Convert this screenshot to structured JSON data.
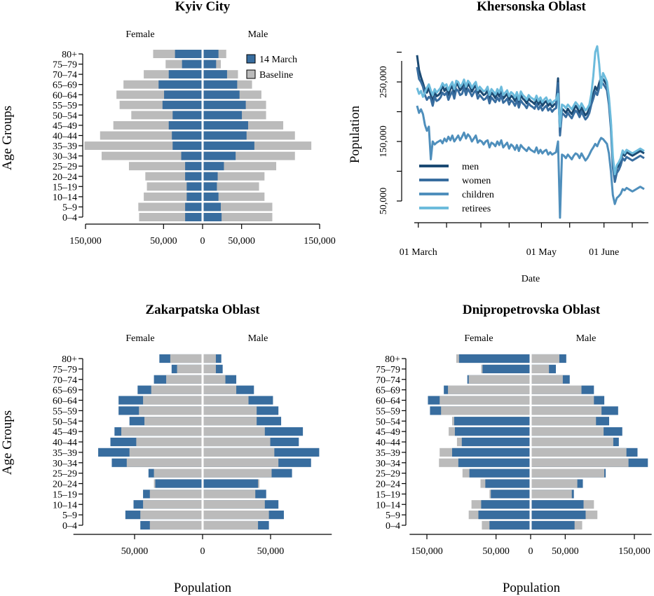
{
  "colors": {
    "march": "#386d9f",
    "baseline": "#bbbbbb",
    "lines": [
      "#1b4a73",
      "#386d9f",
      "#4f8fbc",
      "#6cbbdc"
    ]
  },
  "age_groups": [
    "80+",
    "75–79",
    "70–74",
    "65–69",
    "60–64",
    "55–59",
    "50–54",
    "45–49",
    "40–44",
    "35–39",
    "30–34",
    "25–29",
    "20–24",
    "15–19",
    "10–14",
    "5–9",
    "0–4"
  ],
  "labels": {
    "female": "Female",
    "male": "Male",
    "age_groups_axis": "Age Groups",
    "population_axis": "Population",
    "date_axis": "Date",
    "legend_march": "14 March",
    "legend_baseline": "Baseline"
  },
  "chart_data": [
    {
      "type": "bar",
      "subtype": "population-pyramid",
      "title": "Kyiv City",
      "categories": [
        "80+",
        "75–79",
        "70–74",
        "65–69",
        "60–64",
        "55–59",
        "50–54",
        "45–49",
        "40–44",
        "35–39",
        "30–34",
        "25–29",
        "20–24",
        "15–19",
        "10–14",
        "5–9",
        "0–4"
      ],
      "xlim": [
        -150000,
        150000
      ],
      "xticks": [
        -150000,
        -50000,
        0,
        50000,
        150000
      ],
      "xtick_labels": [
        "150,000",
        "50,000",
        "0",
        "50,000",
        "150,000"
      ],
      "legend": "top-right",
      "female_baseline": [
        62000,
        46000,
        74000,
        100000,
        109000,
        105000,
        90000,
        113000,
        130000,
        150000,
        128000,
        93000,
        72000,
        70000,
        74000,
        81000,
        80000
      ],
      "female_march": [
        34000,
        25000,
        42000,
        55000,
        48000,
        50000,
        37000,
        42000,
        38000,
        37000,
        26000,
        21000,
        21000,
        19000,
        19000,
        21000,
        21000
      ],
      "male_baseline": [
        29000,
        22000,
        44000,
        62000,
        74000,
        80000,
        80000,
        102000,
        117000,
        138000,
        117000,
        93000,
        78000,
        71000,
        78000,
        88000,
        88000
      ],
      "male_march": [
        19000,
        16000,
        30000,
        43000,
        46000,
        54000,
        49000,
        57000,
        55000,
        65000,
        41000,
        26000,
        18000,
        17000,
        19000,
        22000,
        23000
      ]
    },
    {
      "type": "line",
      "title": "Khersonska Oblast",
      "xlabel": "Date",
      "ylabel": "Population",
      "x_ticks": [
        "01 March",
        "01 May",
        "01 June"
      ],
      "yticks": [
        50000,
        150000,
        250000
      ],
      "ytick_labels": [
        "50,000",
        "150,000",
        "250,000"
      ],
      "ylim": [
        15000,
        320000
      ],
      "legend": "bottom-left",
      "x_start_day": 58,
      "x_end_day": 174,
      "series": [
        {
          "name": "men",
          "values": [
            295000,
            270000,
            258000,
            248000,
            237000,
            232000,
            240000,
            228000,
            215000,
            234000,
            226000,
            228000,
            232000,
            245000,
            235000,
            240000,
            228000,
            238000,
            243000,
            231000,
            248000,
            244000,
            236000,
            240000,
            250000,
            237000,
            247000,
            242000,
            234000,
            240000,
            244000,
            230000,
            236000,
            232000,
            228000,
            230000,
            236000,
            222000,
            232000,
            228000,
            223000,
            232000,
            226000,
            236000,
            222000,
            226000,
            230000,
            220000,
            227000,
            224000,
            218000,
            227000,
            214000,
            228000,
            222000,
            219000,
            214000,
            222000,
            218000,
            216000,
            213000,
            221000,
            212000,
            218000,
            210000,
            215000,
            218000,
            210000,
            214000,
            208000,
            212000,
            214000,
            256000,
            165000,
            205000,
            202000,
            198000,
            205000,
            200000,
            196000,
            203000,
            210000,
            205000,
            198000,
            207000,
            200000,
            194000,
            198000,
            205000,
            220000,
            230000,
            242000,
            236000,
            248000,
            258000,
            255000,
            250000,
            244000,
            220000,
            180000,
            115000,
            90000,
            105000,
            110000,
            118000,
            130000,
            126000,
            132000,
            130000,
            128000,
            126000,
            128000,
            130000,
            132000,
            134000,
            132000,
            130000
          ]
        },
        {
          "name": "women",
          "values": [
            275000,
            255000,
            250000,
            242000,
            228000,
            220000,
            225000,
            222000,
            210000,
            225000,
            218000,
            220000,
            224000,
            232000,
            228000,
            232000,
            220000,
            228000,
            234000,
            222000,
            238000,
            235000,
            228000,
            230000,
            241000,
            228000,
            238000,
            233000,
            226000,
            232000,
            236000,
            222000,
            228000,
            224000,
            220000,
            222000,
            227000,
            214000,
            224000,
            220000,
            216000,
            224000,
            218000,
            228000,
            215000,
            218000,
            222000,
            212000,
            219000,
            216000,
            210000,
            219000,
            207000,
            219000,
            214000,
            211000,
            206000,
            214000,
            210000,
            208000,
            205000,
            213000,
            204000,
            210000,
            202000,
            207000,
            210000,
            202000,
            206000,
            200000,
            204000,
            206000,
            248000,
            160000,
            198000,
            195000,
            191000,
            198000,
            193000,
            189000,
            196000,
            202000,
            198000,
            191000,
            200000,
            193000,
            187000,
            191000,
            198000,
            212000,
            222000,
            234000,
            228000,
            240000,
            250000,
            247000,
            242000,
            236000,
            212000,
            172000,
            107000,
            82000,
            97000,
            102000,
            110000,
            122000,
            118000,
            124000,
            122000,
            120000,
            118000,
            120000,
            122000,
            124000,
            126000,
            124000,
            122000
          ]
        },
        {
          "name": "children",
          "values": [
            210000,
            198000,
            204000,
            196000,
            178000,
            168000,
            175000,
            120000,
            150000,
            145000,
            148000,
            150000,
            152000,
            147000,
            155000,
            150000,
            158000,
            152000,
            160000,
            150000,
            155000,
            160000,
            152000,
            158000,
            165000,
            155000,
            162000,
            158000,
            150000,
            155000,
            160000,
            148000,
            152000,
            150000,
            145000,
            150000,
            152000,
            140000,
            148000,
            146000,
            142000,
            150000,
            144000,
            152000,
            140000,
            144000,
            148000,
            138000,
            145000,
            142000,
            136000,
            144000,
            134000,
            144000,
            140000,
            137000,
            134000,
            140000,
            136000,
            134000,
            132000,
            140000,
            130000,
            136000,
            130000,
            134000,
            136000,
            128000,
            132000,
            128000,
            130000,
            132000,
            150000,
            22000,
            128000,
            126000,
            122000,
            128000,
            124000,
            120000,
            126000,
            130000,
            128000,
            122000,
            130000,
            124000,
            118000,
            122000,
            128000,
            135000,
            140000,
            146000,
            142000,
            150000,
            156000,
            154000,
            150000,
            146000,
            130000,
            100000,
            60000,
            45000,
            55000,
            58000,
            62000,
            70000,
            68000,
            72000,
            70000,
            68000,
            66000,
            68000,
            70000,
            72000,
            74000,
            72000,
            70000
          ]
        },
        {
          "name": "retirees",
          "values": [
            240000,
            230000,
            235000,
            225000,
            232000,
            240000,
            246000,
            236000,
            228000,
            238000,
            232000,
            236000,
            240000,
            248000,
            243000,
            246000,
            236000,
            244000,
            250000,
            238000,
            252000,
            250000,
            242000,
            246000,
            254000,
            242000,
            252000,
            248000,
            240000,
            246000,
            250000,
            236000,
            242000,
            238000,
            234000,
            236000,
            242000,
            228000,
            238000,
            234000,
            229000,
            238000,
            232000,
            242000,
            228000,
            232000,
            236000,
            226000,
            233000,
            230000,
            224000,
            233000,
            220000,
            234000,
            228000,
            225000,
            220000,
            228000,
            224000,
            222000,
            219000,
            227000,
            218000,
            224000,
            216000,
            221000,
            224000,
            216000,
            220000,
            214000,
            218000,
            220000,
            230000,
            175000,
            212000,
            210000,
            206000,
            212000,
            208000,
            204000,
            210000,
            216000,
            212000,
            206000,
            214000,
            208000,
            202000,
            206000,
            212000,
            230000,
            260000,
            300000,
            310000,
            280000,
            240000,
            265000,
            258000,
            250000,
            225000,
            185000,
            125000,
            95000,
            110000,
            115000,
            122000,
            135000,
            130000,
            136000,
            134000,
            132000,
            130000,
            132000,
            134000,
            136000,
            138000,
            136000,
            134000
          ]
        }
      ]
    },
    {
      "type": "bar",
      "subtype": "population-pyramid",
      "title": "Zakarpatska Oblast",
      "xlabel": "Population",
      "categories": [
        "80+",
        "75–79",
        "70–74",
        "65–69",
        "60–64",
        "55–59",
        "50–54",
        "45–49",
        "40–44",
        "35–39",
        "30–34",
        "25–29",
        "20–24",
        "15–19",
        "10–14",
        "5–9",
        "0–4"
      ],
      "xlim": [
        -95000,
        95000
      ],
      "xticks": [
        -50000,
        0,
        50000
      ],
      "xtick_labels": [
        "50,000",
        "0",
        "50,000"
      ],
      "female_baseline": [
        23000,
        18000,
        26000,
        37000,
        43000,
        46000,
        42000,
        59000,
        48000,
        53000,
        55000,
        35000,
        35000,
        38000,
        43000,
        45000,
        38000
      ],
      "female_march": [
        31000,
        22000,
        35000,
        47000,
        61000,
        61000,
        53000,
        64000,
        67000,
        76000,
        66000,
        39000,
        34000,
        43000,
        50000,
        56000,
        45000
      ],
      "male_baseline": [
        9000,
        9000,
        16000,
        24000,
        33000,
        39000,
        39000,
        45000,
        49000,
        52000,
        55000,
        50000,
        41000,
        38000,
        45000,
        48000,
        40000
      ],
      "male_march": [
        13000,
        14000,
        24000,
        37000,
        51000,
        55000,
        57000,
        73000,
        70000,
        85000,
        79000,
        65000,
        40000,
        46000,
        55000,
        59000,
        48000
      ]
    },
    {
      "type": "bar",
      "subtype": "population-pyramid",
      "title": "Dnipropetrovska Oblast",
      "xlabel": "Population",
      "categories": [
        "80+",
        "75–79",
        "70–74",
        "65–69",
        "60–64",
        "55–59",
        "50–54",
        "45–49",
        "40–44",
        "35–39",
        "30–34",
        "25–29",
        "20–24",
        "15–19",
        "10–14",
        "5–9",
        "0–4"
      ],
      "xlim": [
        -175000,
        175000
      ],
      "xticks": [
        -150000,
        -50000,
        0,
        50000,
        150000
      ],
      "xtick_labels": [
        "150,000",
        "50,000",
        "0",
        "50,000",
        "150,000"
      ],
      "female_baseline": [
        106000,
        70000,
        88000,
        118000,
        130000,
        128000,
        112000,
        117000,
        105000,
        130000,
        131000,
        97000,
        71000,
        58000,
        84000,
        88000,
        69000
      ],
      "female_march": [
        102000,
        68000,
        90000,
        124000,
        147000,
        144000,
        109000,
        108000,
        98000,
        112000,
        103000,
        87000,
        64000,
        56000,
        70000,
        74000,
        58000
      ],
      "male_baseline": [
        40000,
        25000,
        45000,
        72000,
        90000,
        101000,
        93000,
        104000,
        118000,
        137000,
        140000,
        105000,
        66000,
        58000,
        90000,
        95000,
        73000
      ],
      "male_march": [
        50000,
        35000,
        55000,
        90000,
        105000,
        125000,
        112000,
        131000,
        126000,
        153000,
        168000,
        107000,
        74000,
        61000,
        75000,
        78000,
        62000
      ]
    }
  ]
}
